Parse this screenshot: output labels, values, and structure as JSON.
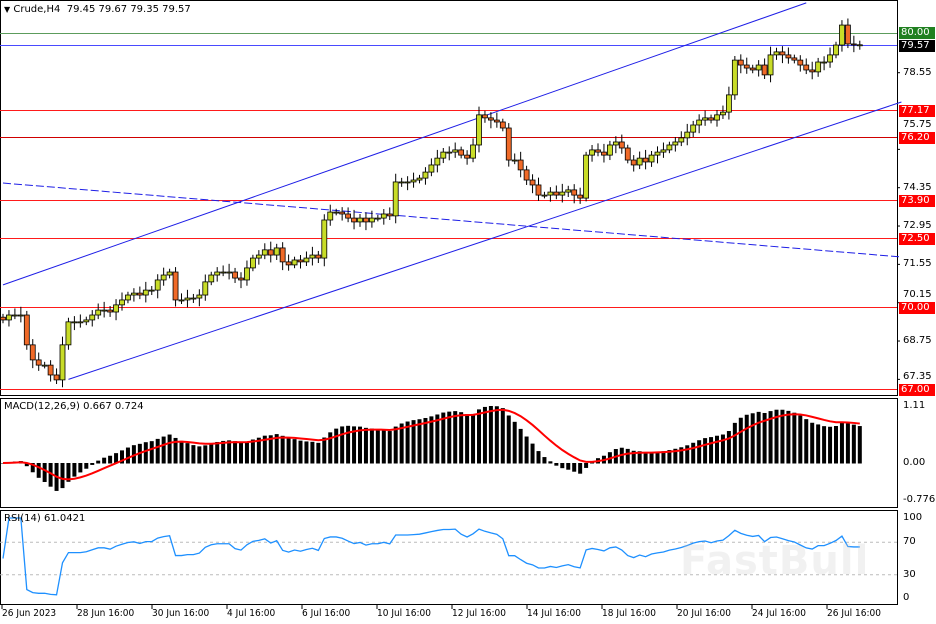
{
  "header": {
    "symbol": "Crude,H4",
    "ohlc": "79.45 79.67 79.35 79.57"
  },
  "watermark": "FastBull",
  "colors": {
    "bull": "#c8dc28",
    "bear": "#f06a28",
    "channel": "#1e1ee6",
    "level": "#ff1a1a",
    "rsi": "#1e90ff",
    "signal": "#ff0000",
    "price_line": "#4a4aff",
    "level_80": "#5c9c5c"
  },
  "chart_data": {
    "type": "candlestick",
    "timeframe": "H4",
    "ylim": [
      66.78,
      81.2
    ],
    "close": [
      69.52,
      69.7,
      69.7,
      69.7,
      68.61,
      68.06,
      67.87,
      67.87,
      67.51,
      67.33,
      68.61,
      69.45,
      69.45,
      69.45,
      69.52,
      69.7,
      69.88,
      69.88,
      69.81,
      70.07,
      70.25,
      70.43,
      70.5,
      70.43,
      70.61,
      70.61,
      70.98,
      71.16,
      71.27,
      70.25,
      70.25,
      70.32,
      70.32,
      70.43,
      70.91,
      71.16,
      71.27,
      71.27,
      71.27,
      71.05,
      70.98,
      71.42,
      71.78,
      71.89,
      72.08,
      71.89,
      72.15,
      71.64,
      71.53,
      71.71,
      71.64,
      71.78,
      71.89,
      71.78,
      73.17,
      73.46,
      73.46,
      73.39,
      73.24,
      73.1,
      73.24,
      73.1,
      73.24,
      73.24,
      73.39,
      73.32,
      74.56,
      74.56,
      74.56,
      74.63,
      74.7,
      74.92,
      75.18,
      75.43,
      75.65,
      75.65,
      75.73,
      75.54,
      75.43,
      75.91,
      77.01,
      76.9,
      76.82,
      76.75,
      76.53,
      75.36,
      75.36,
      75.0,
      74.63,
      74.45,
      74.08,
      74.08,
      74.19,
      74.08,
      74.19,
      74.27,
      74.08,
      73.97,
      75.54,
      75.73,
      75.65,
      75.54,
      75.91,
      76.02,
      75.8,
      75.36,
      75.18,
      75.43,
      75.29,
      75.54,
      75.65,
      75.73,
      75.91,
      76.02,
      76.17,
      76.38,
      76.64,
      76.82,
      76.9,
      76.82,
      77.01,
      77.11,
      77.74,
      79.01,
      78.83,
      78.72,
      78.65,
      78.83,
      78.47,
      79.2,
      79.31,
      79.2,
      79.09,
      79.01,
      78.83,
      78.65,
      78.58,
      78.94,
      78.94,
      79.2,
      79.56,
      80.29,
      79.6,
      79.57,
      79.57
    ],
    "price_axis": [
      "78.55",
      "75.75",
      "74.35",
      "72.95",
      "71.55",
      "70.15",
      "68.75",
      "67.35"
    ],
    "levels": [
      {
        "price": 80.0,
        "label": "80.00",
        "style": "green"
      },
      {
        "price": 79.57,
        "label": "79.57",
        "style": "current"
      },
      {
        "price": 77.17,
        "label": "77.17",
        "style": "red"
      },
      {
        "price": 76.2,
        "label": "76.20",
        "style": "darkred"
      },
      {
        "price": 73.9,
        "label": "73.90",
        "style": "red"
      },
      {
        "price": 72.5,
        "label": "72.50",
        "style": "red"
      },
      {
        "price": 70.0,
        "label": "70.00",
        "style": "red"
      },
      {
        "price": 67.0,
        "label": "67.00",
        "style": "red"
      }
    ],
    "trendlines": [
      {
        "from": [
          0,
          70.8
        ],
        "to": [
          135,
          81.1
        ],
        "dash": false
      },
      {
        "from": [
          11,
          67.35
        ],
        "to": [
          151,
          77.48
        ],
        "dash": false
      },
      {
        "from": [
          0,
          74.52
        ],
        "to": [
          151,
          71.82
        ],
        "dash": true
      }
    ],
    "time_axis": [
      "26 Jun 2023",
      "28 Jun 16:00",
      "30 Jun 16:00",
      "4 Jul 16:00",
      "6 Jul 16:00",
      "10 Jul 16:00",
      "12 Jul 16:00",
      "14 Jul 16:00",
      "18 Jul 16:00",
      "20 Jul 16:00",
      "24 Jul 16:00",
      "26 Jul 16:00"
    ]
  },
  "macd": {
    "label": "MACD(12,26,9) 0.667 0.724",
    "params": [
      12,
      26,
      9
    ],
    "axis": [
      "1.11",
      "0.00",
      "-0.776"
    ],
    "ylim": [
      -0.776,
      1.11
    ]
  },
  "rsi": {
    "label": "RSI(14) 61.0421",
    "period": 14,
    "axis": [
      "100",
      "70",
      "30",
      "0"
    ],
    "levels": [
      70,
      30
    ]
  }
}
